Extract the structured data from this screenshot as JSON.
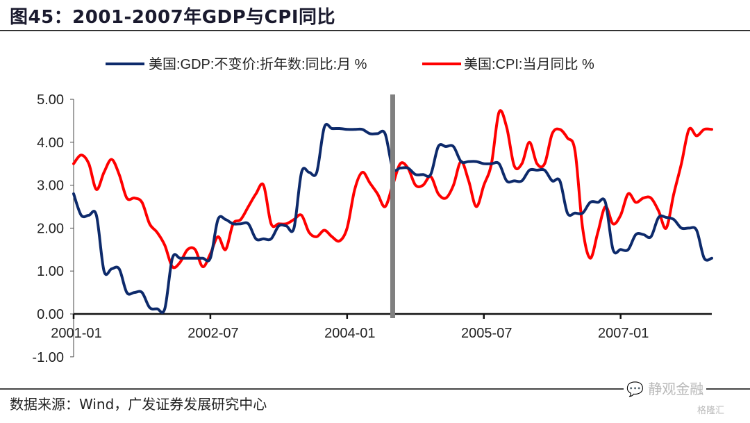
{
  "header": {
    "title": "图45：2001-2007年GDP与CPI同比"
  },
  "footer": {
    "source": "数据来源：Wind，广发证券发展研究中心",
    "watermark": "静观金融",
    "watermark_sub": "格隆汇"
  },
  "chart_data": {
    "type": "line",
    "title": "图45：2001-2007年GDP与CPI同比",
    "xlabel": "",
    "ylabel": "",
    "ylim": [
      -1.0,
      5.0
    ],
    "yticks": [
      "5.00",
      "4.00",
      "3.00",
      "2.00",
      "1.00",
      "0.00",
      "-1.00"
    ],
    "ytick_values": [
      5,
      4,
      3,
      2,
      1,
      0,
      -1
    ],
    "xticks": [
      "2001-01",
      "2002-07",
      "2004-01",
      "2005-07",
      "2007-01"
    ],
    "xtick_months": [
      0,
      18,
      36,
      54,
      72
    ],
    "x_start": "2001-01",
    "x_end": "2007-12",
    "grid": false,
    "legend_position": "top",
    "vertical_marker": {
      "label": "",
      "month_index": 42,
      "color": "#808080"
    },
    "series": [
      {
        "name": "美国:GDP:不变价:折年数:同比:月 %",
        "color": "#0d2a6b",
        "values": [
          2.8,
          2.3,
          2.3,
          2.3,
          1.0,
          1.05,
          1.05,
          0.5,
          0.5,
          0.5,
          0.15,
          0.12,
          0.12,
          1.3,
          1.3,
          1.3,
          1.3,
          1.3,
          1.3,
          2.2,
          2.2,
          2.1,
          2.1,
          2.1,
          1.75,
          1.75,
          1.75,
          2.05,
          2.05,
          2.0,
          3.3,
          3.3,
          3.3,
          4.35,
          4.32,
          4.32,
          4.3,
          4.3,
          4.3,
          4.2,
          4.2,
          4.2,
          3.4,
          3.4,
          3.4,
          3.25,
          3.25,
          3.25,
          3.9,
          3.9,
          3.9,
          3.55,
          3.55,
          3.55,
          3.5,
          3.5,
          3.5,
          3.1,
          3.1,
          3.1,
          3.35,
          3.35,
          3.35,
          3.1,
          3.1,
          2.35,
          2.35,
          2.35,
          2.6,
          2.6,
          2.6,
          1.5,
          1.5,
          1.5,
          1.85,
          1.85,
          1.8,
          2.25,
          2.25,
          2.2,
          2.0,
          2.0,
          1.95,
          1.3,
          1.3
        ],
        "x_months_end": 84
      },
      {
        "name": "美国:CPI:当月同比 %",
        "color": "#ff0000",
        "values": [
          3.5,
          3.7,
          3.5,
          2.9,
          3.3,
          3.6,
          3.25,
          2.7,
          2.7,
          2.6,
          2.1,
          1.9,
          1.6,
          1.1,
          1.2,
          1.5,
          1.5,
          1.1,
          1.4,
          1.8,
          1.5,
          2.1,
          2.2,
          2.5,
          2.8,
          3.0,
          2.1,
          2.1,
          2.1,
          2.2,
          2.3,
          1.9,
          1.8,
          1.95,
          1.8,
          1.7,
          2.0,
          2.9,
          3.3,
          3.05,
          2.8,
          2.5,
          3.0,
          3.5,
          3.4,
          3.0,
          3.0,
          3.2,
          2.8,
          2.7,
          3.0,
          3.55,
          3.1,
          2.5,
          3.0,
          3.5,
          4.7,
          4.35,
          3.45,
          3.5,
          4.0,
          3.5,
          3.5,
          4.2,
          4.3,
          4.1,
          3.8,
          2.0,
          1.3,
          1.9,
          2.5,
          2.1,
          2.3,
          2.8,
          2.6,
          2.7,
          2.7,
          2.4,
          2.0,
          2.8,
          3.5,
          4.3,
          4.15,
          4.3,
          4.3
        ],
        "x_months_end": 84
      }
    ]
  }
}
